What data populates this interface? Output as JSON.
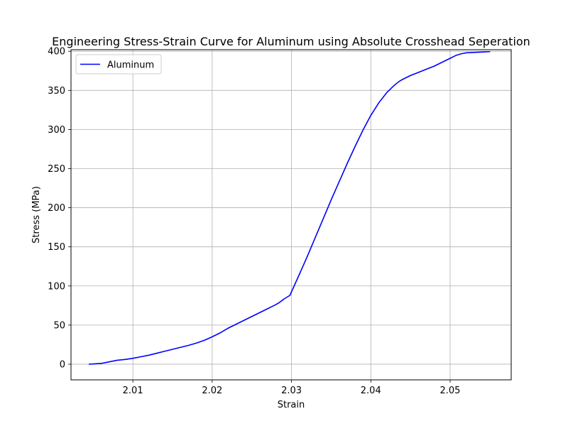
{
  "chart_data": {
    "type": "line",
    "title": "Engineering Stress-Strain Curve for Aluminum using Absolute Crosshead Seperation",
    "xlabel": "Strain",
    "ylabel": "Stress (MPa)",
    "xlim": [
      2.0022,
      2.0577
    ],
    "ylim": [
      -20,
      402
    ],
    "xticks": [
      2.01,
      2.02,
      2.03,
      2.04,
      2.05
    ],
    "xtick_labels": [
      "2.01",
      "2.02",
      "2.03",
      "2.04",
      "2.05"
    ],
    "yticks": [
      0,
      50,
      100,
      150,
      200,
      250,
      300,
      350,
      400
    ],
    "ytick_labels": [
      "0",
      "50",
      "100",
      "150",
      "200",
      "250",
      "300",
      "350",
      "400"
    ],
    "grid": true,
    "legend_position": "upper-left",
    "series": [
      {
        "name": "Aluminum",
        "color": "#0000ff",
        "x": [
          2.0045,
          2.0052,
          2.006,
          2.007,
          2.008,
          2.009,
          2.01,
          2.011,
          2.012,
          2.013,
          2.014,
          2.015,
          2.016,
          2.017,
          2.018,
          2.019,
          2.02,
          2.021,
          2.0215,
          2.022,
          2.023,
          2.024,
          2.025,
          2.026,
          2.027,
          2.028,
          2.0285,
          2.029,
          2.0298,
          2.031,
          2.032,
          2.033,
          2.034,
          2.035,
          2.036,
          2.037,
          2.038,
          2.039,
          2.04,
          2.041,
          2.042,
          2.0428,
          2.0435,
          2.044,
          2.045,
          2.046,
          2.047,
          2.048,
          2.049,
          2.05,
          2.0508,
          2.0515,
          2.052,
          2.053,
          2.054,
          2.055
        ],
        "y": [
          0,
          0.5,
          1,
          3,
          5,
          6,
          7.5,
          9.5,
          11.5,
          14,
          16.5,
          19,
          21.5,
          24,
          27,
          30.5,
          35,
          40,
          43,
          46,
          51,
          56,
          61,
          66,
          71,
          76,
          79,
          83,
          88,
          115,
          138,
          162,
          186,
          210,
          233,
          256,
          278,
          299,
          318,
          334,
          347,
          355,
          361,
          364,
          369,
          373,
          377,
          381,
          386,
          391,
          395,
          397,
          398,
          398.5,
          399,
          399.5
        ]
      }
    ]
  }
}
